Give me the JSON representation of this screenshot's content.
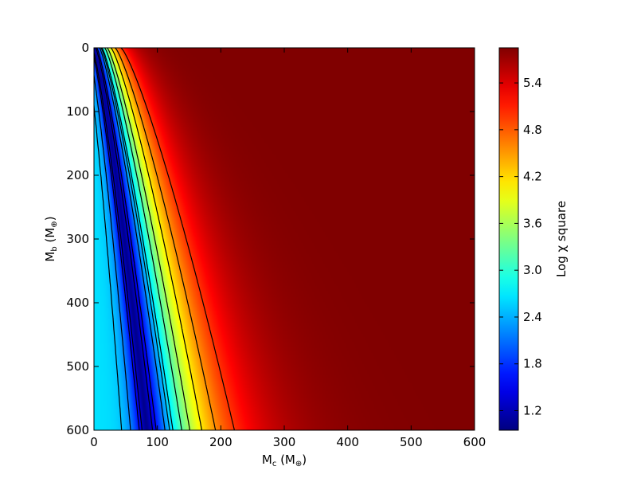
{
  "chart_data": {
    "type": "heatmap",
    "title": "",
    "x_axis": {
      "label_main": "M",
      "label_sub": "c",
      "label_tail": " (M",
      "label_unit_sub": "⊕",
      "label_close": ")",
      "range": [
        0,
        600
      ],
      "ticks": [
        "0",
        "100",
        "200",
        "300",
        "400",
        "500",
        "600"
      ]
    },
    "y_axis": {
      "label_main": "M",
      "label_sub": "b",
      "label_tail": " (M",
      "label_unit_sub": "⊕",
      "label_close": ")",
      "range": [
        0,
        600
      ],
      "inverted": true,
      "ticks": [
        "0",
        "100",
        "200",
        "300",
        "400",
        "500",
        "600"
      ]
    },
    "colorbar": {
      "label": "Log χ square",
      "colormap": "jet",
      "range": [
        0.95,
        5.85
      ],
      "ticks": [
        "1.2",
        "1.8",
        "2.4",
        "3.0",
        "3.6",
        "4.2",
        "4.8",
        "5.4"
      ]
    },
    "field": {
      "description_note": "log10 chi-square surface over (M_c, M_b); minimum valley along M_c ≈ 0.5*M_b^0.8",
      "min_value": 1.0,
      "max_value": 5.85
    },
    "contour_levels": [
      2.5,
      1.6,
      1.35,
      1.6,
      2.2,
      2.7,
      3.2,
      3.6,
      4.1,
      4.55,
      5.0
    ],
    "grid": false,
    "legend": "none"
  }
}
